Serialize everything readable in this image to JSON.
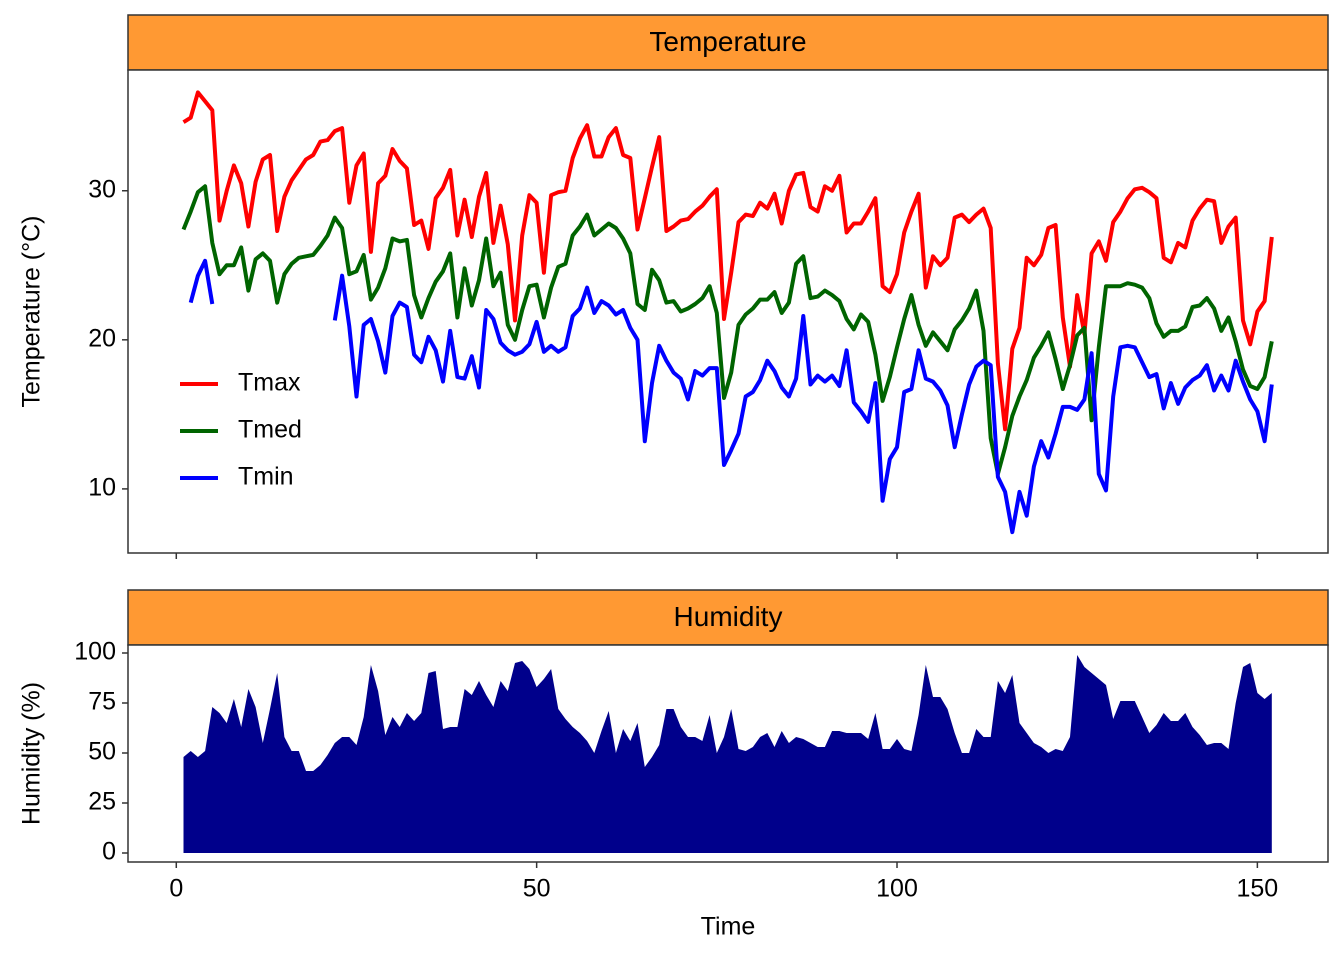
{
  "chart_data": [
    {
      "type": "line",
      "title": "Temperature",
      "y_label": "Temperature (°C)",
      "legend": "lower left",
      "x": [
        1,
        2,
        3,
        4,
        5,
        6,
        7,
        8,
        9,
        10,
        11,
        12,
        13,
        14,
        15,
        16,
        17,
        18,
        19,
        20,
        21,
        22,
        23,
        24,
        25,
        26,
        27,
        28,
        29,
        30,
        31,
        32,
        33,
        34,
        35,
        36,
        37,
        38,
        39,
        40,
        41,
        42,
        43,
        44,
        45,
        46,
        47,
        48,
        49,
        50,
        51,
        52,
        53,
        54,
        55,
        56,
        57,
        58,
        59,
        60,
        61,
        62,
        63,
        64,
        65,
        66,
        67,
        68,
        69,
        70,
        71,
        72,
        73,
        74,
        75,
        76,
        77,
        78,
        79,
        80,
        81,
        82,
        83,
        84,
        85,
        86,
        87,
        88,
        89,
        90,
        91,
        92,
        93,
        94,
        95,
        96,
        97,
        98,
        99,
        100,
        101,
        102,
        103,
        104,
        105,
        106,
        107,
        108,
        109,
        110,
        111,
        112,
        113,
        114,
        115,
        116,
        117,
        118,
        119,
        120,
        121,
        122,
        123,
        124,
        125,
        126,
        127,
        128,
        129,
        130,
        131,
        132,
        133,
        134,
        135,
        136,
        137,
        138,
        139,
        140,
        141,
        142,
        143,
        144,
        145,
        146,
        147,
        148,
        149,
        150,
        151,
        152
      ],
      "series": [
        {
          "name": "Tmax",
          "color": "#ff0000",
          "values": [
            34.6,
            34.9,
            36.6,
            36.0,
            35.4,
            28.0,
            30.0,
            31.7,
            30.5,
            27.6,
            30.6,
            32.1,
            32.4,
            27.3,
            29.6,
            30.7,
            31.4,
            32.1,
            32.4,
            33.3,
            33.4,
            34.0,
            34.2,
            29.2,
            31.7,
            32.5,
            25.9,
            30.5,
            31.0,
            32.8,
            32.0,
            31.5,
            27.7,
            28.0,
            26.1,
            29.5,
            30.2,
            31.4,
            27.0,
            29.4,
            26.9,
            29.6,
            31.2,
            26.5,
            29.0,
            26.4,
            21.3,
            27.0,
            29.7,
            29.2,
            24.5,
            29.7,
            29.9,
            30.0,
            32.2,
            33.5,
            34.4,
            32.3,
            32.3,
            33.6,
            34.2,
            32.4,
            32.2,
            27.4,
            29.5,
            31.6,
            33.6,
            27.3,
            27.6,
            28.0,
            28.1,
            28.6,
            29.0,
            29.6,
            30.1,
            21.4,
            24.5,
            27.9,
            28.4,
            28.3,
            29.2,
            28.8,
            29.8,
            27.8,
            30.0,
            31.1,
            31.2,
            28.9,
            28.6,
            30.3,
            30.0,
            31.0,
            27.2,
            27.8,
            27.8,
            28.6,
            29.5,
            23.6,
            23.2,
            24.4,
            27.2,
            28.6,
            29.8,
            23.5,
            25.6,
            25.0,
            25.5,
            28.2,
            28.4,
            27.9,
            28.4,
            28.8,
            27.5,
            18.4,
            14.0,
            19.4,
            20.8,
            25.5,
            25.0,
            25.7,
            27.5,
            27.7,
            21.5,
            18.2,
            23.0,
            20.4,
            25.8,
            26.6,
            25.3,
            27.9,
            28.6,
            29.5,
            30.1,
            30.2,
            29.9,
            29.5,
            25.5,
            25.2,
            26.5,
            26.2,
            28.0,
            28.8,
            29.4,
            29.3,
            26.5,
            27.6,
            28.2,
            21.3,
            19.7,
            21.9,
            22.6,
            26.9
          ]
        },
        {
          "name": "Tmed",
          "color": "#006400",
          "values": [
            27.4,
            28.6,
            29.9,
            30.3,
            26.5,
            24.4,
            25.0,
            25.0,
            26.2,
            23.3,
            25.4,
            25.8,
            25.3,
            22.5,
            24.4,
            25.1,
            25.5,
            25.6,
            25.7,
            26.3,
            27.0,
            28.2,
            27.5,
            24.4,
            24.6,
            25.7,
            22.7,
            23.5,
            24.8,
            26.8,
            26.6,
            26.7,
            23.0,
            21.5,
            22.8,
            23.9,
            24.6,
            25.8,
            21.5,
            24.8,
            22.3,
            24.0,
            26.8,
            23.6,
            24.5,
            21.0,
            20.0,
            22.0,
            23.6,
            23.7,
            21.5,
            23.5,
            24.9,
            25.1,
            27.0,
            27.6,
            28.4,
            27.0,
            27.4,
            27.8,
            27.5,
            26.8,
            25.8,
            22.4,
            22.0,
            24.7,
            24.0,
            22.5,
            22.6,
            21.9,
            22.1,
            22.4,
            22.8,
            23.6,
            21.8,
            16.1,
            17.8,
            21.0,
            21.7,
            22.1,
            22.7,
            22.7,
            23.2,
            21.8,
            22.5,
            25.1,
            25.6,
            22.8,
            22.9,
            23.3,
            23.0,
            22.6,
            21.4,
            20.7,
            21.7,
            21.2,
            19.0,
            15.9,
            17.5,
            19.5,
            21.4,
            23.0,
            21.0,
            19.6,
            20.5,
            19.9,
            19.3,
            20.7,
            21.3,
            22.1,
            23.3,
            20.6,
            13.4,
            11.0,
            12.8,
            14.9,
            16.2,
            17.3,
            18.8,
            19.6,
            20.5,
            18.7,
            16.7,
            18.3,
            20.3,
            20.8,
            14.6,
            19.5,
            23.6,
            23.6,
            23.6,
            23.8,
            23.7,
            23.5,
            22.8,
            21.1,
            20.2,
            20.6,
            20.6,
            20.9,
            22.2,
            22.3,
            22.8,
            22.1,
            20.6,
            21.5,
            19.9,
            18.0,
            16.9,
            16.7,
            17.5,
            19.9
          ]
        },
        {
          "name": "Tmin",
          "color": "#0000ff",
          "values": [
            null,
            22.5,
            24.3,
            25.3,
            22.4,
            null,
            null,
            null,
            null,
            null,
            null,
            null,
            null,
            null,
            null,
            null,
            null,
            null,
            null,
            null,
            null,
            21.3,
            24.3,
            20.9,
            16.2,
            21.0,
            21.4,
            19.9,
            17.8,
            21.6,
            22.5,
            22.2,
            19.0,
            18.5,
            20.2,
            19.3,
            17.2,
            20.6,
            17.5,
            17.4,
            18.9,
            16.8,
            22.0,
            21.4,
            19.8,
            19.3,
            19.0,
            19.2,
            19.7,
            21.2,
            19.2,
            19.6,
            19.2,
            19.5,
            21.6,
            22.1,
            23.5,
            21.8,
            22.6,
            22.3,
            21.7,
            22.0,
            20.8,
            20.0,
            13.2,
            17.1,
            19.6,
            18.6,
            17.8,
            17.4,
            16.0,
            17.9,
            17.6,
            18.1,
            18.1,
            11.6,
            12.6,
            13.7,
            16.2,
            16.5,
            17.3,
            18.6,
            17.9,
            16.8,
            16.2,
            17.4,
            21.6,
            17.0,
            17.6,
            17.2,
            17.6,
            16.9,
            19.3,
            15.8,
            15.2,
            14.5,
            17.1,
            9.2,
            12.0,
            12.8,
            16.5,
            16.7,
            19.3,
            17.4,
            17.2,
            16.6,
            15.6,
            12.8,
            15.0,
            17.0,
            18.2,
            18.6,
            18.3,
            10.8,
            9.8,
            7.1,
            9.8,
            8.2,
            11.5,
            13.2,
            12.1,
            13.7,
            15.5,
            15.5,
            15.3,
            16.0,
            19.1,
            11.0,
            9.9,
            16.2,
            19.5,
            19.6,
            19.5,
            18.5,
            17.5,
            17.7,
            15.4,
            17.1,
            15.7,
            16.8,
            17.3,
            17.6,
            18.3,
            16.6,
            17.6,
            16.6,
            18.6,
            17.2,
            16.0,
            15.2,
            13.2,
            17.0
          ]
        }
      ],
      "xlim": [
        -6.7,
        159.8
      ],
      "xticks": [
        0,
        50,
        100,
        150
      ],
      "ylim": [
        5.7,
        38.1
      ],
      "yticks": [
        10,
        20,
        30
      ]
    },
    {
      "type": "area",
      "title": "Humidity",
      "y_label": "Humidity (%)",
      "x_label": "Time",
      "color": "#00008b",
      "x": [
        1,
        2,
        3,
        4,
        5,
        6,
        7,
        8,
        9,
        10,
        11,
        12,
        13,
        14,
        15,
        16,
        17,
        18,
        19,
        20,
        21,
        22,
        23,
        24,
        25,
        26,
        27,
        28,
        29,
        30,
        31,
        32,
        33,
        34,
        35,
        36,
        37,
        38,
        39,
        40,
        41,
        42,
        43,
        44,
        45,
        46,
        47,
        48,
        49,
        50,
        51,
        52,
        53,
        54,
        55,
        56,
        57,
        58,
        59,
        60,
        61,
        62,
        63,
        64,
        65,
        66,
        67,
        68,
        69,
        70,
        71,
        72,
        73,
        74,
        75,
        76,
        77,
        78,
        79,
        80,
        81,
        82,
        83,
        84,
        85,
        86,
        87,
        88,
        89,
        90,
        91,
        92,
        93,
        94,
        95,
        96,
        97,
        98,
        99,
        100,
        101,
        102,
        103,
        104,
        105,
        106,
        107,
        108,
        109,
        110,
        111,
        112,
        113,
        114,
        115,
        116,
        117,
        118,
        119,
        120,
        121,
        122,
        123,
        124,
        125,
        126,
        127,
        128,
        129,
        130,
        131,
        132,
        133,
        134,
        135,
        136,
        137,
        138,
        139,
        140,
        141,
        142,
        143,
        144,
        145,
        146,
        147,
        148,
        149,
        150,
        151,
        152
      ],
      "values": [
        48,
        51,
        48,
        51,
        73,
        70,
        65,
        77,
        63,
        82,
        73,
        55,
        72,
        90,
        58,
        51,
        51,
        41,
        41,
        44,
        49,
        55,
        58,
        58,
        54,
        68,
        94,
        81,
        59,
        68,
        63,
        70,
        66,
        70,
        90,
        91,
        62,
        63,
        63,
        82,
        79,
        86,
        79,
        73,
        86,
        81,
        95,
        96,
        92,
        83,
        87,
        92,
        72,
        67,
        63,
        60,
        56,
        50,
        61,
        71,
        50,
        62,
        56,
        65,
        43,
        48,
        54,
        72,
        72,
        63,
        58,
        58,
        56,
        69,
        50,
        58,
        72,
        52,
        51,
        53,
        58,
        60,
        53,
        61,
        55,
        58,
        57,
        55,
        53,
        53,
        61,
        61,
        60,
        60,
        60,
        57,
        70,
        52,
        52,
        57,
        52,
        51,
        69,
        94,
        78,
        78,
        72,
        60,
        50,
        50,
        62,
        58,
        58,
        86,
        80,
        89,
        65,
        60,
        55,
        53,
        50,
        52,
        51,
        58,
        99,
        93,
        90,
        87,
        84,
        67,
        76,
        76,
        76,
        68,
        60,
        64,
        70,
        66,
        66,
        70,
        63,
        59,
        54,
        55,
        55,
        52,
        75,
        93,
        95,
        80,
        77,
        80
      ],
      "xlim": [
        -6.7,
        159.8
      ],
      "xticks": [
        0,
        50,
        100,
        150
      ],
      "ylim": [
        -4.5,
        104
      ],
      "yticks": [
        0,
        25,
        50,
        75,
        100
      ]
    }
  ]
}
